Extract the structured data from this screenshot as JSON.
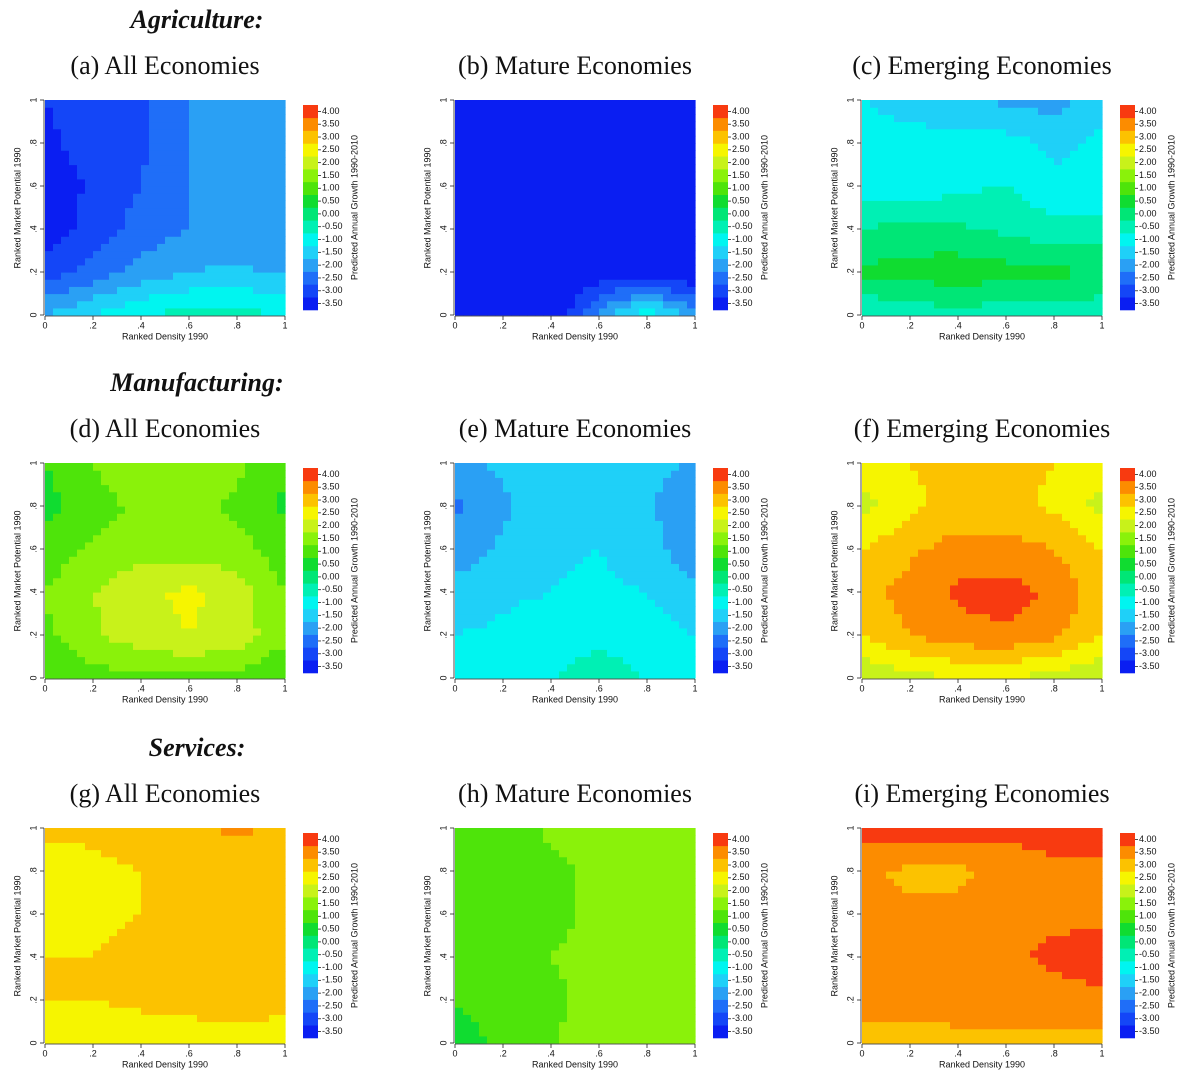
{
  "sections": [
    "Agriculture:",
    "Manufacturing:",
    "Services:"
  ],
  "colorbar": {
    "label": "Predicted Annual Growth 1990-2010",
    "ticks": [
      {
        "value": -3.5,
        "label": "-3.50"
      },
      {
        "value": -3,
        "label": "-3.00"
      },
      {
        "value": -2.5,
        "label": "-2.50"
      },
      {
        "value": -2,
        "label": "-2.00"
      },
      {
        "value": -1.5,
        "label": "-1.50"
      },
      {
        "value": -1,
        "label": "-1.00"
      },
      {
        "value": -0.5,
        "label": "-0.50"
      },
      {
        "value": 0,
        "label": "0.00"
      },
      {
        "value": 0.5,
        "label": "0.50"
      },
      {
        "value": 1,
        "label": "1.00"
      },
      {
        "value": 1.5,
        "label": "1.50"
      },
      {
        "value": 2,
        "label": "2.00"
      },
      {
        "value": 2.5,
        "label": "2.50"
      },
      {
        "value": 3,
        "label": "3.00"
      },
      {
        "value": 3.5,
        "label": "3.50"
      },
      {
        "value": 4,
        "label": "4.00"
      }
    ],
    "colors": [
      "#0a1ef2",
      "#1446f7",
      "#1f6ef8",
      "#2aa0f4",
      "#1fd0f8",
      "#00f5f0",
      "#00f0b4",
      "#00e676",
      "#10dc30",
      "#4ee40a",
      "#8af20a",
      "#c8f21a",
      "#f6f500",
      "#fcc200",
      "#fc8c00",
      "#f83a10"
    ]
  },
  "chart_data": [
    {
      "type": "contour",
      "title": "(a) All Economies",
      "xlabel": "Ranked Density 1990",
      "ylabel": "Ranked Market Potential 1990",
      "xlim": [
        0,
        1
      ],
      "ylim": [
        0,
        1
      ],
      "xticks": [
        0,
        {
          "value": 0.2,
          "label": ".2"
        },
        {
          "value": 0.4,
          "label": ".4"
        },
        {
          "value": 0.6,
          "label": ".6"
        },
        {
          "value": 0.8,
          "label": ".8"
        },
        1
      ],
      "yticks": [
        0,
        {
          "value": 0.2,
          "label": ".2"
        },
        {
          "value": 0.4,
          "label": ".4"
        },
        {
          "value": 0.6,
          "label": ".6"
        },
        {
          "value": 0.8,
          "label": ".8"
        },
        1
      ],
      "x": [
        0,
        0.2,
        0.4,
        0.6,
        0.8,
        1
      ],
      "y": [
        0,
        0.2,
        0.4,
        0.6,
        0.8,
        1
      ],
      "z": [
        [
          -1.5,
          -1,
          -0.5,
          -0.3,
          -0.3,
          -0.5
        ],
        [
          -2.8,
          -2.3,
          -1.8,
          -1.5,
          -1.4,
          -1.6
        ],
        [
          -3.3,
          -2.8,
          -2.3,
          -2,
          -1.9,
          -2
        ],
        [
          -3.4,
          -2.9,
          -2.5,
          -2,
          -1.9,
          -1.9
        ],
        [
          -3.2,
          -2.6,
          -2.6,
          -2,
          -1.9,
          -1.9
        ],
        [
          -3,
          -2.7,
          -2.6,
          -2,
          -1.9,
          -1.9
        ]
      ]
    },
    {
      "type": "contour",
      "title": "(b) Mature Economies",
      "xlabel": "Ranked Density 1990",
      "ylabel": "Ranked Market Potential 1990",
      "xlim": [
        0,
        1
      ],
      "ylim": [
        0,
        1
      ],
      "xticks": [
        0,
        {
          "value": 0.2,
          "label": ".2"
        },
        {
          "value": 0.4,
          "label": ".4"
        },
        {
          "value": 0.6,
          "label": ".6"
        },
        {
          "value": 0.8,
          "label": ".8"
        },
        1
      ],
      "yticks": [
        0,
        {
          "value": 0.2,
          "label": ".2"
        },
        {
          "value": 0.4,
          "label": ".4"
        },
        {
          "value": 0.6,
          "label": ".6"
        },
        {
          "value": 0.8,
          "label": ".8"
        },
        1
      ],
      "x": [
        0,
        0.2,
        0.4,
        0.6,
        0.8,
        1
      ],
      "y": [
        0,
        0.2,
        0.4,
        0.6,
        0.8,
        1
      ],
      "z": [
        [
          -3.6,
          -3.6,
          -3.6,
          -1.8,
          -0.6,
          -1.8
        ],
        [
          -3.6,
          -3.6,
          -3.6,
          -3.4,
          -3.2,
          -3.5
        ],
        [
          -3.6,
          -3.6,
          -3.6,
          -3.6,
          -3.6,
          -3.6
        ],
        [
          -3.6,
          -3.6,
          -3.6,
          -3.6,
          -3.6,
          -3.6
        ],
        [
          -3.6,
          -3.6,
          -3.6,
          -3.6,
          -3.6,
          -3.6
        ],
        [
          -3.6,
          -3.6,
          -3.6,
          -3.6,
          -3.3,
          -3.6
        ]
      ]
    },
    {
      "type": "contour",
      "title": "(c) Emerging Economies",
      "xlabel": "Ranked Density 1990",
      "ylabel": "Ranked Market Potential 1990",
      "xlim": [
        0,
        1
      ],
      "ylim": [
        0,
        1
      ],
      "xticks": [
        0,
        {
          "value": 0.2,
          "label": ".2"
        },
        {
          "value": 0.4,
          "label": ".4"
        },
        {
          "value": 0.6,
          "label": ".6"
        },
        {
          "value": 0.8,
          "label": ".8"
        },
        1
      ],
      "yticks": [
        0,
        {
          "value": 0.2,
          "label": ".2"
        },
        {
          "value": 0.4,
          "label": ".4"
        },
        {
          "value": 0.6,
          "label": ".6"
        },
        {
          "value": 0.8,
          "label": ".8"
        },
        1
      ],
      "x": [
        0,
        0.2,
        0.4,
        0.6,
        0.8,
        1
      ],
      "y": [
        0,
        0.2,
        0.4,
        0.6,
        0.8,
        1
      ],
      "z": [
        [
          -0.5,
          -0.3,
          -0.2,
          -0.3,
          -0.3,
          -0.4
        ],
        [
          0.6,
          0.7,
          0.8,
          0.7,
          0.6,
          0.5
        ],
        [
          0,
          0.2,
          0.1,
          -0.1,
          -0.3,
          -0.3
        ],
        [
          -0.7,
          -0.9,
          -0.6,
          -0.5,
          -0.9,
          -1
        ],
        [
          -0.9,
          -0.9,
          -0.9,
          -0.8,
          -1.1,
          -0.9
        ],
        [
          -1,
          -1.1,
          -1.2,
          -1.6,
          -1.7,
          -1.2
        ]
      ]
    },
    {
      "type": "contour",
      "title": "(d) All Economies",
      "xlabel": "Ranked Density 1990",
      "ylabel": "Ranked Market Potential 1990",
      "xlim": [
        0,
        1
      ],
      "ylim": [
        0,
        1
      ],
      "xticks": [
        0,
        {
          "value": 0.2,
          "label": ".2"
        },
        {
          "value": 0.4,
          "label": ".4"
        },
        {
          "value": 0.6,
          "label": ".6"
        },
        {
          "value": 0.8,
          "label": ".8"
        },
        1
      ],
      "yticks": [
        0,
        {
          "value": 0.2,
          "label": ".2"
        },
        {
          "value": 0.4,
          "label": ".4"
        },
        {
          "value": 0.6,
          "label": ".6"
        },
        {
          "value": 0.8,
          "label": ".8"
        },
        1
      ],
      "x": [
        0,
        0.2,
        0.4,
        0.6,
        0.8,
        1
      ],
      "y": [
        0,
        0.2,
        0.4,
        0.6,
        0.8,
        1
      ],
      "z": [
        [
          1,
          1.3,
          1.4,
          1.4,
          1.3,
          1
        ],
        [
          1.4,
          1.9,
          2.3,
          2.5,
          2.3,
          1.6
        ],
        [
          1.5,
          2,
          2.4,
          2.6,
          2.3,
          1.5
        ],
        [
          1.2,
          1.6,
          1.8,
          1.8,
          1.7,
          1.2
        ],
        [
          0.8,
          1.3,
          1.6,
          1.7,
          1.4,
          0.9
        ],
        [
          1,
          1.5,
          2,
          2,
          1.6,
          1.1
        ]
      ]
    },
    {
      "type": "contour",
      "title": "(e) Mature Economies",
      "xlabel": "Ranked Density 1990",
      "ylabel": "Ranked Market Potential 1990",
      "xlim": [
        0,
        1
      ],
      "ylim": [
        0,
        1
      ],
      "xticks": [
        0,
        {
          "value": 0.2,
          "label": ".2"
        },
        {
          "value": 0.4,
          "label": ".4"
        },
        {
          "value": 0.6,
          "label": ".6"
        },
        {
          "value": 0.8,
          "label": ".8"
        },
        1
      ],
      "yticks": [
        0,
        {
          "value": 0.2,
          "label": ".2"
        },
        {
          "value": 0.4,
          "label": ".4"
        },
        {
          "value": 0.6,
          "label": ".6"
        },
        {
          "value": 0.8,
          "label": ".8"
        },
        1
      ],
      "x": [
        0,
        0.2,
        0.4,
        0.6,
        0.8,
        1
      ],
      "y": [
        0,
        0.2,
        0.4,
        0.6,
        0.8,
        1
      ],
      "z": [
        [
          -1,
          -0.8,
          -0.5,
          -0.3,
          -0.5,
          -0.8
        ],
        [
          -1,
          -0.9,
          -0.7,
          -0.6,
          -0.7,
          -1
        ],
        [
          -1.3,
          -1.1,
          -1,
          -0.9,
          -1,
          -1.4
        ],
        [
          -1.8,
          -1.4,
          -1.1,
          -1,
          -1.3,
          -1.8
        ],
        [
          -2.1,
          -1.6,
          -1.1,
          -1,
          -1.4,
          -2
        ],
        [
          -1.6,
          -1.4,
          -1.1,
          -1,
          -1.3,
          -1.6
        ]
      ]
    },
    {
      "type": "contour",
      "title": "(f) Emerging Economies",
      "xlabel": "Ranked Density 1990",
      "ylabel": "Ranked Market Potential 1990",
      "xlim": [
        0,
        1
      ],
      "ylim": [
        0,
        1
      ],
      "xticks": [
        0,
        {
          "value": 0.2,
          "label": ".2"
        },
        {
          "value": 0.4,
          "label": ".4"
        },
        {
          "value": 0.6,
          "label": ".6"
        },
        {
          "value": 0.8,
          "label": ".8"
        },
        1
      ],
      "yticks": [
        0,
        {
          "value": 0.2,
          "label": ".2"
        },
        {
          "value": 0.4,
          "label": ".4"
        },
        {
          "value": 0.6,
          "label": ".6"
        },
        {
          "value": 0.8,
          "label": ".8"
        },
        1
      ],
      "x": [
        0,
        0.2,
        0.4,
        0.6,
        0.8,
        1
      ],
      "y": [
        0,
        0.2,
        0.4,
        0.6,
        0.8,
        1
      ],
      "z": [
        [
          2,
          2.3,
          2.5,
          2.5,
          2.3,
          2
        ],
        [
          3,
          3.5,
          3.8,
          3.9,
          3.6,
          3
        ],
        [
          3.3,
          3.7,
          4.1,
          4.2,
          3.9,
          3.2
        ],
        [
          3,
          3.4,
          3.7,
          3.7,
          3.5,
          3
        ],
        [
          2.3,
          2.9,
          3.2,
          3.2,
          2.9,
          2.3
        ],
        [
          2.7,
          3,
          3.1,
          3.1,
          3,
          2.8
        ]
      ]
    },
    {
      "type": "contour",
      "title": "(g) All Economies",
      "xlabel": "Ranked Density 1990",
      "ylabel": "Ranked Market Potential 1990",
      "xlim": [
        0,
        1
      ],
      "ylim": [
        0,
        1
      ],
      "xticks": [
        0,
        {
          "value": 0.2,
          "label": ".2"
        },
        {
          "value": 0.4,
          "label": ".4"
        },
        {
          "value": 0.6,
          "label": ".6"
        },
        {
          "value": 0.8,
          "label": ".8"
        },
        1
      ],
      "yticks": [
        0,
        {
          "value": 0.2,
          "label": ".2"
        },
        {
          "value": 0.4,
          "label": ".4"
        },
        {
          "value": 0.6,
          "label": ".6"
        },
        {
          "value": 0.8,
          "label": ".8"
        },
        1
      ],
      "x": [
        0,
        0.2,
        0.4,
        0.6,
        0.8,
        1
      ],
      "y": [
        0,
        0.2,
        0.4,
        0.6,
        0.8,
        1
      ],
      "z": [
        [
          2.6,
          2.7,
          2.7,
          2.7,
          2.7,
          2.8
        ],
        [
          3,
          3,
          3.1,
          3.2,
          3.3,
          3.1
        ],
        [
          3,
          3,
          3.1,
          3.2,
          3.3,
          3.1
        ],
        [
          2.7,
          2.9,
          3,
          3,
          3,
          3
        ],
        [
          2.7,
          2.9,
          3,
          3,
          3,
          3
        ],
        [
          3.1,
          3.1,
          3.2,
          3.4,
          3.6,
          3.4
        ]
      ]
    },
    {
      "type": "contour",
      "title": "(h) Mature Economies",
      "xlabel": "Ranked Density 1990",
      "ylabel": "Ranked Market Potential 1990",
      "xlim": [
        0,
        1
      ],
      "ylim": [
        0,
        1
      ],
      "xticks": [
        0,
        {
          "value": 0.2,
          "label": ".2"
        },
        {
          "value": 0.4,
          "label": ".4"
        },
        {
          "value": 0.6,
          "label": ".6"
        },
        {
          "value": 0.8,
          "label": ".8"
        },
        1
      ],
      "yticks": [
        0,
        {
          "value": 0.2,
          "label": ".2"
        },
        {
          "value": 0.4,
          "label": ".4"
        },
        {
          "value": 0.6,
          "label": ".6"
        },
        {
          "value": 0.8,
          "label": ".8"
        },
        1
      ],
      "x": [
        0,
        0.2,
        0.4,
        0.6,
        0.8,
        1
      ],
      "y": [
        0,
        0.2,
        0.4,
        0.6,
        0.8,
        1
      ],
      "z": [
        [
          0.8,
          1.1,
          1.4,
          1.9,
          1.9,
          1.5
        ],
        [
          1,
          1.2,
          1.4,
          1.7,
          1.6,
          1.5
        ],
        [
          1,
          1.2,
          1.5,
          1.6,
          1.6,
          1.6
        ],
        [
          1,
          1.1,
          1.4,
          1.6,
          1.6,
          1.6
        ],
        [
          1,
          1.1,
          1.4,
          1.6,
          1.6,
          1.6
        ],
        [
          1,
          1.2,
          1.6,
          1.6,
          1.6,
          1.6
        ]
      ]
    },
    {
      "type": "contour",
      "title": "(i) Emerging Economies",
      "xlabel": "Ranked Density 1990",
      "ylabel": "Ranked Market Potential 1990",
      "xlim": [
        0,
        1
      ],
      "ylim": [
        0,
        1
      ],
      "xticks": [
        0,
        {
          "value": 0.2,
          "label": ".2"
        },
        {
          "value": 0.4,
          "label": ".4"
        },
        {
          "value": 0.6,
          "label": ".6"
        },
        {
          "value": 0.8,
          "label": ".8"
        },
        1
      ],
      "yticks": [
        0,
        {
          "value": 0.2,
          "label": ".2"
        },
        {
          "value": 0.4,
          "label": ".4"
        },
        {
          "value": 0.6,
          "label": ".6"
        },
        {
          "value": 0.8,
          "label": ".8"
        },
        1
      ],
      "x": [
        0,
        0.2,
        0.4,
        0.6,
        0.8,
        1
      ],
      "y": [
        0,
        0.2,
        0.4,
        0.6,
        0.8,
        1
      ],
      "z": [
        [
          3.2,
          3.2,
          3.3,
          3.3,
          3.3,
          3.3
        ],
        [
          3.8,
          3.8,
          3.8,
          3.8,
          3.8,
          3.9
        ],
        [
          3.8,
          3.8,
          3.8,
          3.9,
          4.1,
          4.2
        ],
        [
          3.7,
          3.6,
          3.6,
          3.8,
          3.9,
          3.9
        ],
        [
          3.6,
          3.4,
          3.4,
          3.6,
          3.9,
          3.9
        ],
        [
          4.2,
          4.2,
          4.2,
          4.2,
          4.2,
          4.2
        ]
      ]
    }
  ]
}
